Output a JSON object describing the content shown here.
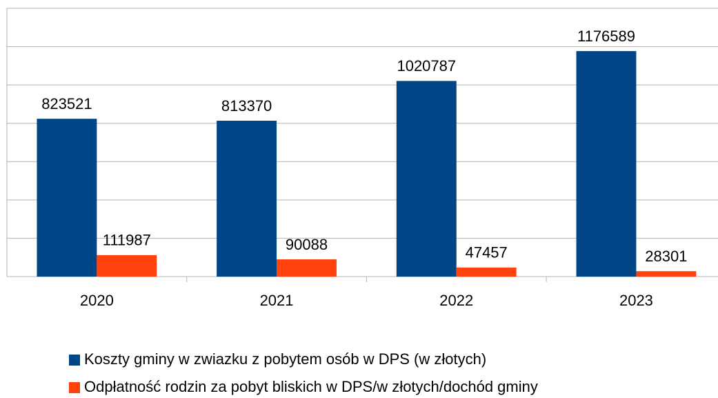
{
  "chart_data": {
    "type": "bar",
    "categories": [
      "2020",
      "2021",
      "2022",
      "2023"
    ],
    "series": [
      {
        "name": "Koszty gminy w zwiazku z pobytem osób w DPS (w złotych)",
        "color": "#004586",
        "values": [
          823521,
          813370,
          1020787,
          1176589
        ]
      },
      {
        "name": "Odpłatność rodzin za pobyt  bliskich  w DPS/w złotych/dochód gminy",
        "color": "#ff420e",
        "values": [
          111987,
          90088,
          47457,
          28301
        ]
      }
    ],
    "ylim": [
      0,
      1400000
    ],
    "yticks": [
      0,
      200000,
      400000,
      600000,
      800000,
      1000000,
      1200000,
      1400000
    ],
    "grid": true
  }
}
